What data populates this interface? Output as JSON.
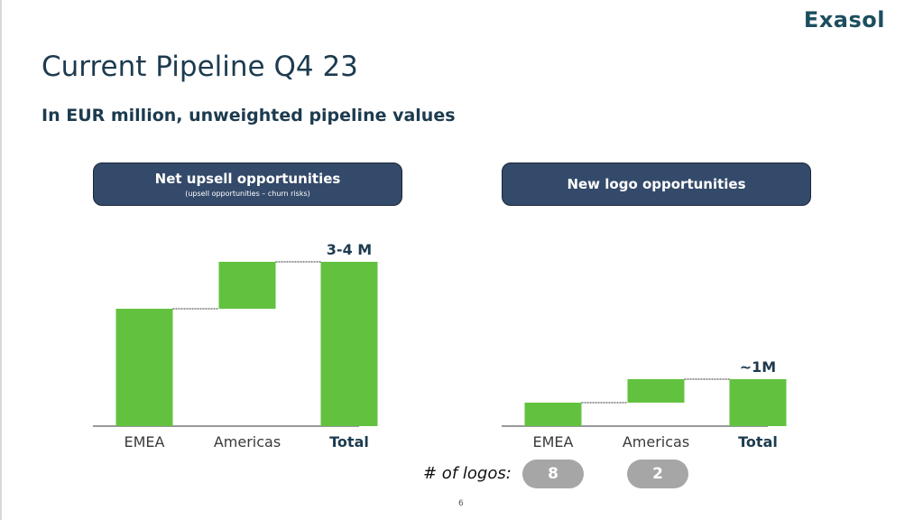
{
  "brand": {
    "logo_text": "Exasol"
  },
  "slide": {
    "title": "Current Pipeline Q4 23",
    "subtitle": "In EUR million, unweighted pipeline values",
    "page_number": "6",
    "logos_label": "# of logos:"
  },
  "panels": {
    "left": {
      "header": "Net upsell opportunities",
      "subheader": "(upsell opportunities – churn risks)"
    },
    "right": {
      "header": "New logo opportunities"
    }
  },
  "logo_counts": [
    {
      "category": "EMEA",
      "count": "8"
    },
    {
      "category": "Americas",
      "count": "2"
    }
  ],
  "colors": {
    "bar": "#62c23f",
    "header_bg": "#344a6a",
    "text_dark": "#1d3b4f",
    "pill": "#a6a6a6"
  },
  "chart_data": [
    {
      "type": "waterfall",
      "categories": [
        "EMEA",
        "Americas",
        "Total"
      ],
      "increments": [
        2.5,
        1.0
      ],
      "total": 3.5,
      "total_label": "3-4 M",
      "ylim": [
        0,
        3.5
      ]
    },
    {
      "type": "waterfall",
      "categories": [
        "EMEA",
        "Americas",
        "Total"
      ],
      "increments": [
        0.5,
        0.5
      ],
      "total": 1.0,
      "total_label": "~1M",
      "ylim": [
        0,
        3.5
      ]
    }
  ]
}
